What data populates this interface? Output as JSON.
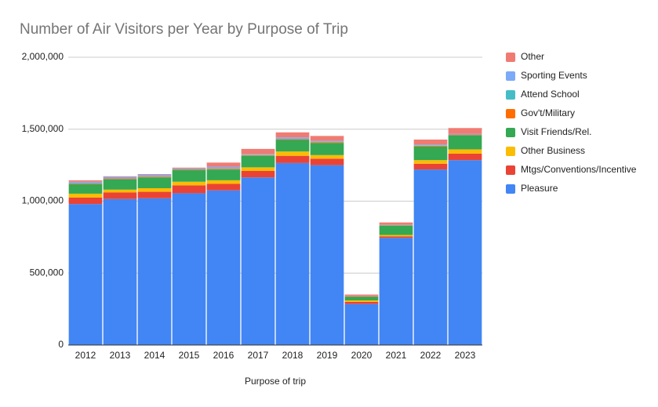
{
  "chart_data": {
    "type": "stacked_bar",
    "title": "Number of Air Visitors per Year by Purpose of Trip",
    "x_label": "Purpose of trip",
    "categories": [
      "2012",
      "2013",
      "2014",
      "2015",
      "2016",
      "2017",
      "2018",
      "2019",
      "2020",
      "2021",
      "2022",
      "2023"
    ],
    "series": [
      {
        "name": "Pleasure",
        "color": "#4285f4",
        "values": [
          980000,
          1015000,
          1020000,
          1055000,
          1075000,
          1165000,
          1265000,
          1250000,
          285000,
          745000,
          1220000,
          1285000
        ]
      },
      {
        "name": "Mtgs/Conventions/Incentive",
        "color": "#ea4335",
        "values": [
          45000,
          45000,
          45000,
          55000,
          45000,
          45000,
          50000,
          45000,
          15000,
          10000,
          40000,
          45000
        ]
      },
      {
        "name": "Other Business",
        "color": "#fbbc04",
        "values": [
          27000,
          20000,
          25000,
          25000,
          25000,
          25000,
          30000,
          25000,
          10000,
          10000,
          25000,
          30000
        ]
      },
      {
        "name": "Visit Friends/Rel.",
        "color": "#34a853",
        "values": [
          65000,
          70000,
          75000,
          80000,
          75000,
          80000,
          80000,
          85000,
          25000,
          65000,
          95000,
          95000
        ]
      },
      {
        "name": "Gov't/Military",
        "color": "#ff6d01",
        "values": [
          5000,
          5000,
          5000,
          5000,
          5000,
          5000,
          5000,
          5000,
          3000,
          3000,
          5000,
          5000
        ]
      },
      {
        "name": "Attend School",
        "color": "#46bdc6",
        "values": [
          3000,
          3000,
          3000,
          3000,
          3000,
          3000,
          3000,
          3000,
          1000,
          1000,
          3000,
          3000
        ]
      },
      {
        "name": "Sporting Events",
        "color": "#7baaf7",
        "values": [
          10000,
          10000,
          10000,
          5000,
          10000,
          5000,
          10000,
          5000,
          2000,
          3000,
          5000,
          5000
        ]
      },
      {
        "name": "Other",
        "color": "#f07b72",
        "values": [
          10000,
          5000,
          5000,
          5000,
          30000,
          35000,
          35000,
          35000,
          10000,
          15000,
          35000,
          40000
        ]
      }
    ],
    "ylim": [
      0,
      2000000
    ],
    "yticks": [
      0,
      {
        "value": 500000,
        "label": "500,000"
      },
      {
        "value": 1000000,
        "label": "1,000,000"
      },
      {
        "value": 1500000,
        "label": "1,500,000"
      },
      {
        "value": 2000000,
        "label": "2,000,000"
      }
    ],
    "grid": true,
    "legend": "right"
  }
}
